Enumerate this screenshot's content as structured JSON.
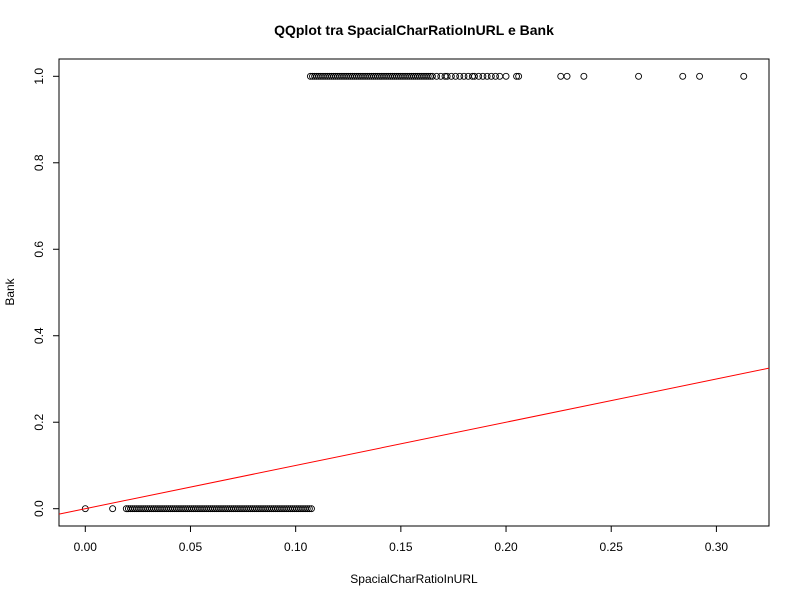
{
  "chart_data": {
    "type": "scatter",
    "title": "QQplot tra SpacialCharRatioInURL e Bank",
    "xlabel": "SpacialCharRatioInURL",
    "ylabel": "Bank",
    "xlim": [
      -0.0125,
      0.325
    ],
    "ylim": [
      -0.04,
      1.04
    ],
    "x_ticks": [
      "0.00",
      "0.05",
      "0.10",
      "0.15",
      "0.20",
      "0.25",
      "0.30"
    ],
    "x_tick_values": [
      0.0,
      0.05,
      0.1,
      0.15,
      0.2,
      0.25,
      0.3
    ],
    "y_ticks": [
      "0.0",
      "0.2",
      "0.4",
      "0.6",
      "0.8",
      "1.0"
    ],
    "y_tick_values": [
      0.0,
      0.2,
      0.4,
      0.6,
      0.8,
      1.0
    ],
    "grid": false,
    "colors": {
      "points": "#000000",
      "line": "#ff0000"
    },
    "series": [
      {
        "values_y0": {
          "y": 0,
          "x": [
            0.0,
            0.013,
            0.0195,
            0.0205,
            0.0215,
            0.0225,
            0.0235,
            0.0245,
            0.0255,
            0.0265,
            0.0275,
            0.0285,
            0.0295,
            0.0305,
            0.0315,
            0.0325,
            0.0335,
            0.0345,
            0.0355,
            0.0365,
            0.0375,
            0.0385,
            0.0395,
            0.0405,
            0.0415,
            0.0425,
            0.0435,
            0.0445,
            0.0455,
            0.0465,
            0.0475,
            0.0485,
            0.0495,
            0.0505,
            0.0515,
            0.0525,
            0.0535,
            0.0545,
            0.0555,
            0.0565,
            0.0575,
            0.0585,
            0.0595,
            0.0605,
            0.0615,
            0.0625,
            0.0635,
            0.0645,
            0.0655,
            0.0665,
            0.0675,
            0.0685,
            0.0695,
            0.0705,
            0.0715,
            0.0725,
            0.0735,
            0.0745,
            0.0755,
            0.0765,
            0.0775,
            0.0785,
            0.0795,
            0.0805,
            0.0815,
            0.0825,
            0.0835,
            0.0845,
            0.0855,
            0.0865,
            0.0875,
            0.0885,
            0.0895,
            0.0905,
            0.0915,
            0.0925,
            0.0935,
            0.0945,
            0.0955,
            0.0965,
            0.0975,
            0.0985,
            0.0995,
            0.1005,
            0.1015,
            0.1025,
            0.1035,
            0.1045,
            0.1055,
            0.1065,
            0.1075
          ]
        },
        "values_y1": {
          "y": 1,
          "x": [
            0.107,
            0.108,
            0.109,
            0.11,
            0.111,
            0.112,
            0.113,
            0.114,
            0.115,
            0.116,
            0.117,
            0.118,
            0.119,
            0.12,
            0.121,
            0.122,
            0.123,
            0.124,
            0.125,
            0.126,
            0.127,
            0.128,
            0.129,
            0.13,
            0.131,
            0.132,
            0.133,
            0.134,
            0.135,
            0.136,
            0.137,
            0.138,
            0.139,
            0.14,
            0.141,
            0.142,
            0.143,
            0.144,
            0.145,
            0.146,
            0.147,
            0.148,
            0.149,
            0.15,
            0.151,
            0.152,
            0.153,
            0.154,
            0.155,
            0.156,
            0.157,
            0.158,
            0.159,
            0.16,
            0.161,
            0.162,
            0.163,
            0.164,
            0.165,
            0.167,
            0.169,
            0.171,
            0.172,
            0.174,
            0.176,
            0.178,
            0.18,
            0.182,
            0.184,
            0.185,
            0.187,
            0.189,
            0.191,
            0.193,
            0.195,
            0.197,
            0.2,
            0.205,
            0.206,
            0.226,
            0.229,
            0.237,
            0.263,
            0.284,
            0.292,
            0.313
          ]
        }
      }
    ],
    "reference_line": {
      "slope": 1.0,
      "intercept": 0.0
    }
  }
}
